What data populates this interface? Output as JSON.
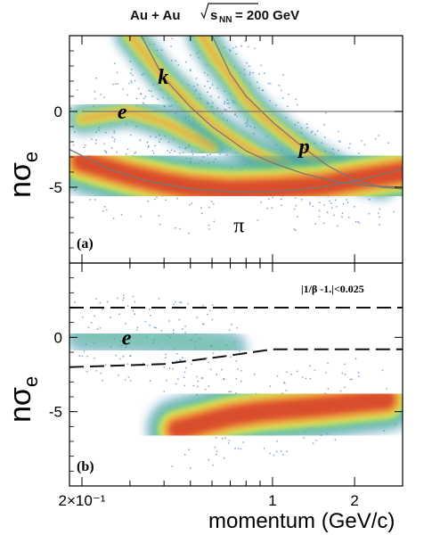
{
  "title": {
    "system": "Au + Au",
    "energy_symbol": "s",
    "energy_sub": "NN",
    "energy_value": "= 200 GeV"
  },
  "colors": {
    "band_high": "#d8452a",
    "band_mid": "#f29a3a",
    "band_yellow": "#e8e84e",
    "band_green": "#5cc88a",
    "band_low": "#2a78b6",
    "scatter": "#2d5fa6",
    "curve": "#777777",
    "dash": "#111111"
  },
  "chart_data": [
    {
      "type": "heatmap",
      "panel_label": "(a)",
      "ylabel": "nσ",
      "ylabel_sub": "e",
      "xlabel": "",
      "xscale": "log",
      "xlim": [
        0.18,
        3.0
      ],
      "ylim": [
        -10,
        5
      ],
      "y_ticks": [
        0,
        -5
      ],
      "y_tick_labels": [
        "0",
        "-5"
      ],
      "grid": false,
      "annotations": [
        {
          "text": "k",
          "x": 0.38,
          "y": 2.3
        },
        {
          "text": "e",
          "x": 0.27,
          "y": 0.0
        },
        {
          "text": "p",
          "x": 1.25,
          "y": -2.3
        },
        {
          "text": "π",
          "x": 0.72,
          "y": -7.5
        }
      ],
      "bands": [
        {
          "name": "e",
          "points": [
            [
              0.2,
              -0.5
            ],
            [
              0.3,
              0.0
            ],
            [
              0.4,
              -0.7
            ],
            [
              0.5,
              -1.6
            ],
            [
              0.6,
              -2.3
            ]
          ]
        },
        {
          "name": "k",
          "points": [
            [
              0.3,
              5
            ],
            [
              0.35,
              3.5
            ],
            [
              0.4,
              2.2
            ],
            [
              0.5,
              0.5
            ],
            [
              0.6,
              -0.8
            ],
            [
              0.7,
              -1.7
            ],
            [
              0.9,
              -2.9
            ],
            [
              1.2,
              -3.8
            ],
            [
              1.6,
              -4.3
            ]
          ]
        },
        {
          "name": "p",
          "points": [
            [
              0.55,
              5
            ],
            [
              0.62,
              3.5
            ],
            [
              0.7,
              2.3
            ],
            [
              0.8,
              0.8
            ],
            [
              0.9,
              -0.2
            ],
            [
              1.1,
              -1.5
            ],
            [
              1.4,
              -2.9
            ],
            [
              1.8,
              -4.0
            ],
            [
              2.5,
              -4.8
            ]
          ]
        },
        {
          "name": "π",
          "points": [
            [
              0.2,
              -3.3
            ],
            [
              0.25,
              -3.8
            ],
            [
              0.3,
              -4.2
            ],
            [
              0.4,
              -4.7
            ],
            [
              0.5,
              -5.0
            ],
            [
              0.7,
              -5.2
            ],
            [
              1.0,
              -5.1
            ],
            [
              1.5,
              -4.9
            ],
            [
              2.0,
              -4.5
            ],
            [
              3.0,
              -4.0
            ]
          ]
        }
      ],
      "curves": [
        {
          "name": "e",
          "points": [
            [
              0.2,
              0
            ],
            [
              3.0,
              0
            ]
          ]
        },
        {
          "name": "k",
          "points": [
            [
              0.33,
              5
            ],
            [
              0.4,
              2.2
            ],
            [
              0.5,
              0.3
            ],
            [
              0.6,
              -1.0
            ],
            [
              0.8,
              -2.6
            ],
            [
              1.0,
              -3.4
            ],
            [
              1.3,
              -4.1
            ],
            [
              1.7,
              -4.6
            ],
            [
              2.2,
              -4.9
            ],
            [
              3.0,
              -5.0
            ]
          ]
        },
        {
          "name": "p",
          "points": [
            [
              0.6,
              5
            ],
            [
              0.7,
              2.5
            ],
            [
              0.8,
              1.0
            ],
            [
              1.0,
              -0.7
            ],
            [
              1.3,
              -2.4
            ],
            [
              1.6,
              -3.6
            ],
            [
              2.0,
              -4.5
            ],
            [
              2.5,
              -5.0
            ],
            [
              3.0,
              -5.1
            ]
          ]
        },
        {
          "name": "π",
          "points": [
            [
              0.18,
              -2.5
            ],
            [
              0.25,
              -3.8
            ],
            [
              0.35,
              -4.6
            ],
            [
              0.5,
              -5.1
            ],
            [
              0.7,
              -5.3
            ],
            [
              1.0,
              -5.3
            ],
            [
              1.5,
              -5.0
            ],
            [
              2.0,
              -4.6
            ],
            [
              3.0,
              -3.8
            ]
          ]
        }
      ]
    },
    {
      "type": "heatmap",
      "panel_label": "(b)",
      "cut_label": "|1/β -1.|<0.025",
      "ylabel": "nσ",
      "ylabel_sub": "e",
      "xlabel": "momentum (GeV/c)",
      "xscale": "log",
      "xlim": [
        0.18,
        3.0
      ],
      "ylim": [
        -10,
        5
      ],
      "y_ticks": [
        0,
        -5
      ],
      "y_tick_labels": [
        "0",
        "-5"
      ],
      "x_ticks": [
        0.2,
        1,
        2
      ],
      "x_tick_labels": [
        "2×10⁻¹",
        "1",
        "2"
      ],
      "grid": false,
      "annotations": [
        {
          "text": "e",
          "x": 0.28,
          "y": 0.0
        }
      ],
      "bands": [
        {
          "name": "e",
          "points": [
            [
              0.2,
              0.1
            ],
            [
              0.3,
              0.0
            ],
            [
              0.45,
              -0.2
            ],
            [
              0.7,
              -0.7
            ]
          ]
        },
        {
          "name": "hadron",
          "points": [
            [
              0.45,
              -6.2
            ],
            [
              0.55,
              -5.8
            ],
            [
              0.7,
              -5.3
            ],
            [
              0.9,
              -5.0
            ],
            [
              1.2,
              -4.8
            ],
            [
              1.6,
              -4.6
            ],
            [
              2.0,
              -4.4
            ],
            [
              2.6,
              -4.2
            ]
          ]
        }
      ],
      "cuts": [
        {
          "name": "upper",
          "points": [
            [
              0.18,
              2.0
            ],
            [
              3.0,
              2.0
            ]
          ]
        },
        {
          "name": "lower",
          "points": [
            [
              0.18,
              -2.0
            ],
            [
              0.4,
              -1.8
            ],
            [
              0.65,
              -1.3
            ],
            [
              1.0,
              -0.8
            ],
            [
              3.0,
              -0.8
            ]
          ]
        }
      ]
    }
  ]
}
